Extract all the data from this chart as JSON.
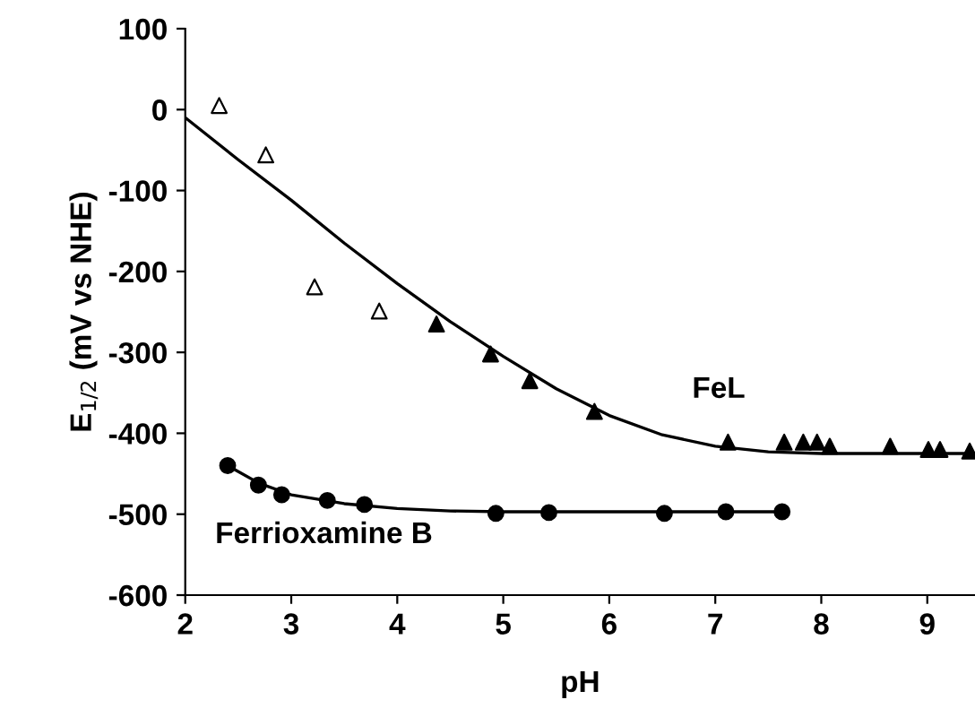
{
  "chart_data": {
    "type": "scatter",
    "xlabel": "pH",
    "ylabel": "E$_{1/2}$ (mV vs NHE)",
    "xlim": [
      2,
      9.45
    ],
    "xticks": [
      2,
      3,
      4,
      5,
      6,
      7,
      8,
      9
    ],
    "ylim": [
      -600,
      100
    ],
    "yticks": [
      -600,
      -500,
      -400,
      -300,
      -200,
      -100,
      0,
      100
    ],
    "grid": false,
    "legend": false,
    "series": [
      {
        "type": "line",
        "name": "FeL",
        "color": "#000000",
        "marker": "none",
        "x": [
          2,
          2.5,
          3,
          3.5,
          4,
          4.5,
          5,
          5.5,
          6,
          6.5,
          7,
          7.5,
          8,
          9.45
        ],
        "values": [
          -10,
          -62,
          -112,
          -165,
          -215,
          -262,
          -305,
          -345,
          -378,
          -402,
          -416,
          -423,
          -425,
          -425
        ]
      },
      {
        "color": "#ffffff",
        "marker": "triangle",
        "x": [
          2.32,
          2.76,
          3.22,
          3.83
        ],
        "values": [
          5,
          -56,
          -219,
          -249
        ]
      },
      {
        "color": "#000000",
        "marker": "triangle",
        "x": [
          4.37,
          4.88,
          5.25,
          5.86,
          7.12,
          7.65,
          7.83,
          7.96,
          8.08,
          8.65,
          9.01,
          9.12,
          9.4
        ],
        "values": [
          -265,
          -302,
          -335,
          -373,
          -411,
          -411,
          -411,
          -411,
          -416,
          -416,
          -420,
          -420,
          -422
        ]
      },
      {
        "type": "line",
        "name": "Ferrioxamine B",
        "color": "#000000",
        "marker": "none",
        "x": [
          2.4,
          2.7,
          3,
          3.5,
          4,
          4.5,
          5,
          7.63
        ],
        "values": [
          -440,
          -462,
          -476,
          -487,
          -493,
          -496,
          -497,
          -497
        ]
      },
      {
        "color": "#000000",
        "marker": "circle",
        "x": [
          2.4,
          2.69,
          2.91,
          3.34,
          3.69,
          4.93,
          5.43,
          6.52,
          7.1,
          7.63
        ],
        "values": [
          -440,
          -464,
          -476,
          -483,
          -488,
          -499,
          -498,
          -499,
          -497,
          -497
        ]
      }
    ]
  }
}
